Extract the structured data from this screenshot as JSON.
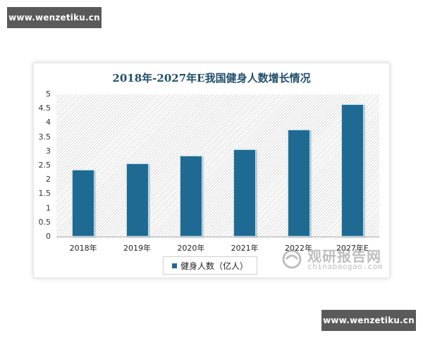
{
  "watermarks": {
    "top": "www.wenzetiku.cn",
    "bottom": "www.wenzetiku.cn"
  },
  "chart": {
    "title": "2018年-2027年E我国健身人数增长情况",
    "y_ticks": [
      "5",
      "4.5",
      "4",
      "3.5",
      "3",
      "2.5",
      "2",
      "1.5",
      "1",
      "0.5",
      "0"
    ],
    "legend": "健身人数（亿人）",
    "source_logo": {
      "cn": "观研报告网",
      "en": "chinabaogao.com"
    }
  },
  "chart_data": {
    "type": "bar",
    "title": "2018年-2027年E我国健身人数增长情况",
    "categories": [
      "2018年",
      "2019年",
      "2020年",
      "2021年",
      "2022年",
      "2027年E"
    ],
    "series": [
      {
        "name": "健身人数（亿人）",
        "values": [
          2.35,
          2.57,
          2.85,
          3.07,
          3.76,
          4.65
        ],
        "color": "#1f6a93"
      }
    ],
    "xlabel": "",
    "ylabel": "",
    "ylim": [
      0,
      5
    ],
    "y_tick_step": 0.5,
    "grid": false,
    "legend_position": "bottom"
  }
}
